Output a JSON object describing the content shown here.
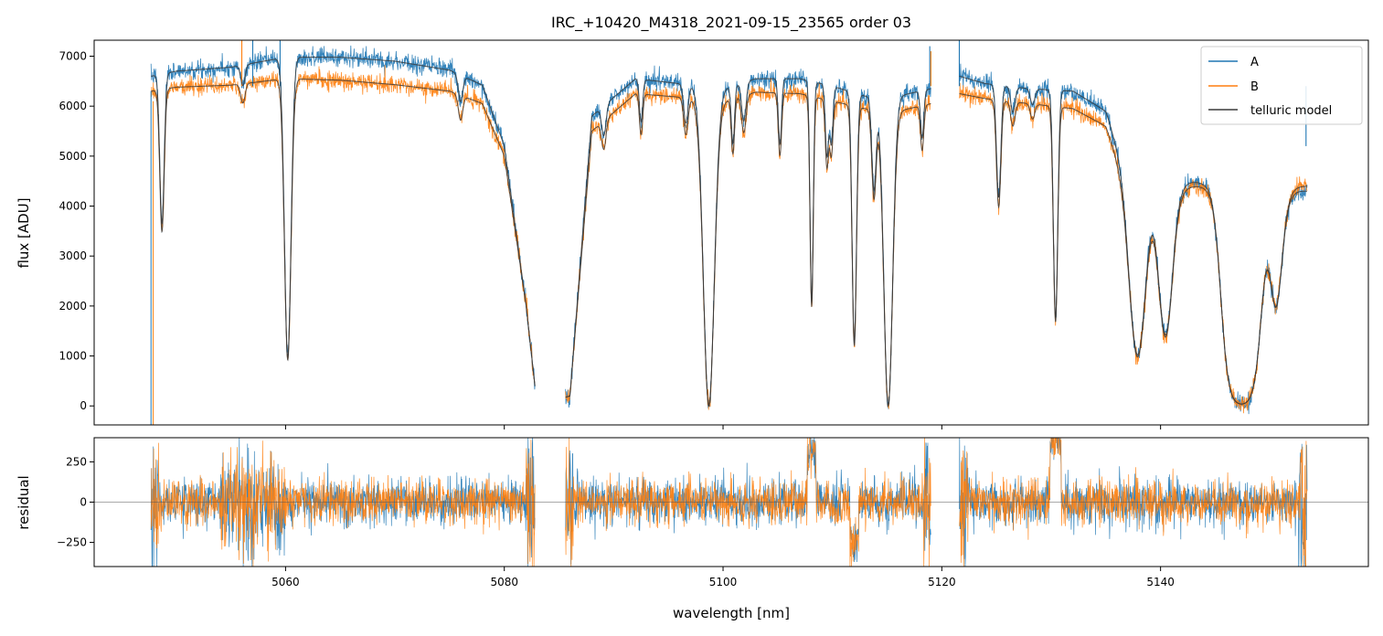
{
  "chart_data": [
    {
      "type": "line",
      "panel": "top",
      "title": "IRC_+10420_M4318_2021-09-15_23565  order 03",
      "xlabel": "",
      "ylabel": "flux [ADU]",
      "xlim": [
        5042.5,
        5159
      ],
      "ylim": [
        -380,
        7320
      ],
      "yticks": [
        0,
        1000,
        2000,
        3000,
        4000,
        5000,
        6000,
        7000
      ],
      "ytick_labels": [
        "0",
        "1000",
        "2000",
        "3000",
        "4000",
        "5000",
        "6000",
        "7000"
      ],
      "xticks": [
        5060,
        5080,
        5100,
        5120,
        5140
      ],
      "legend": {
        "position": "top-right",
        "entries": [
          "A",
          "B",
          "telluric model"
        ]
      },
      "colors": {
        "A": "#1f77b4",
        "B": "#ff7f0e",
        "model": "#3a3a3a"
      },
      "grid": false,
      "series": [
        {
          "name": "A",
          "segments": [
            [
              5047.7,
              5082.8
            ],
            [
              5085.6,
              5119.0
            ],
            [
              5121.6,
              5153.4
            ]
          ],
          "continuum": [
            [
              5047.7,
              6600
            ],
            [
              5050,
              6700
            ],
            [
              5055,
              6780
            ],
            [
              5060,
              6980
            ],
            [
              5065,
              6980
            ],
            [
              5070,
              6900
            ],
            [
              5075,
              6720
            ],
            [
              5078,
              6420
            ],
            [
              5080,
              5200
            ],
            [
              5082,
              2000
            ],
            [
              5083,
              0
            ],
            [
              5086,
              200
            ],
            [
              5088,
              5800
            ],
            [
              5092,
              6550
            ],
            [
              5096,
              6450
            ],
            [
              5100,
              6350
            ],
            [
              5103,
              6550
            ],
            [
              5107,
              6550
            ],
            [
              5110,
              6400
            ],
            [
              5113,
              6200
            ],
            [
              5116,
              6200
            ],
            [
              5119,
              6350
            ],
            [
              5121.6,
              6600
            ],
            [
              5124,
              6450
            ],
            [
              5128,
              6350
            ],
            [
              5132,
              6300
            ],
            [
              5135,
              5900
            ],
            [
              5137,
              4600
            ],
            [
              5153.4,
              4300
            ]
          ]
        },
        {
          "name": "B",
          "segments": [
            [
              5047.7,
              5082.8
            ],
            [
              5085.6,
              5119.0
            ],
            [
              5121.6,
              5153.4
            ]
          ],
          "continuum": [
            [
              5047.7,
              6300
            ],
            [
              5050,
              6380
            ],
            [
              5055,
              6420
            ],
            [
              5060,
              6550
            ],
            [
              5065,
              6520
            ],
            [
              5070,
              6430
            ],
            [
              5075,
              6300
            ],
            [
              5078,
              6050
            ],
            [
              5080,
              5000
            ],
            [
              5082,
              2000
            ],
            [
              5083,
              0
            ],
            [
              5086,
              200
            ],
            [
              5088,
              5500
            ],
            [
              5092,
              6250
            ],
            [
              5096,
              6180
            ],
            [
              5100,
              6100
            ],
            [
              5103,
              6280
            ],
            [
              5107,
              6250
            ],
            [
              5110,
              6100
            ],
            [
              5113,
              5950
            ],
            [
              5116,
              5900
            ],
            [
              5119,
              6050
            ],
            [
              5121.6,
              6250
            ],
            [
              5124,
              6150
            ],
            [
              5128,
              6050
            ],
            [
              5132,
              5950
            ],
            [
              5135,
              5600
            ],
            [
              5137,
              4400
            ],
            [
              5153.4,
              4400
            ]
          ]
        },
        {
          "name": "telluric model"
        }
      ],
      "absorption_lines": [
        {
          "center": 5048.7,
          "depth": 0.45,
          "width": 0.2
        },
        {
          "center": 5060.2,
          "depth": 0.86,
          "width": 0.3
        },
        {
          "center": 5056.1,
          "depth": 0.06,
          "width": 0.2
        },
        {
          "center": 5076.0,
          "depth": 0.08,
          "width": 0.2
        },
        {
          "center": 5089.1,
          "depth": 0.1,
          "width": 0.2
        },
        {
          "center": 5092.5,
          "depth": 0.13,
          "width": 0.15
        },
        {
          "center": 5096.6,
          "depth": 0.12,
          "width": 0.2
        },
        {
          "center": 5098.7,
          "depth": 1.0,
          "width": 0.5
        },
        {
          "center": 5100.9,
          "depth": 0.18,
          "width": 0.15
        },
        {
          "center": 5101.9,
          "depth": 0.12,
          "width": 0.2
        },
        {
          "center": 5105.2,
          "depth": 0.2,
          "width": 0.15
        },
        {
          "center": 5108.1,
          "depth": 0.68,
          "width": 0.15
        },
        {
          "center": 5109.5,
          "depth": 0.22,
          "width": 0.15
        },
        {
          "center": 5109.9,
          "depth": 0.18,
          "width": 0.15
        },
        {
          "center": 5112.0,
          "depth": 0.8,
          "width": 0.2
        },
        {
          "center": 5113.8,
          "depth": 0.3,
          "width": 0.2
        },
        {
          "center": 5115.1,
          "depth": 1.0,
          "width": 0.4
        },
        {
          "center": 5118.2,
          "depth": 0.15,
          "width": 0.15
        },
        {
          "center": 5125.2,
          "depth": 0.35,
          "width": 0.2
        },
        {
          "center": 5126.5,
          "depth": 0.08,
          "width": 0.2
        },
        {
          "center": 5128.3,
          "depth": 0.05,
          "width": 0.2
        },
        {
          "center": 5130.4,
          "depth": 0.72,
          "width": 0.2
        }
      ],
      "absorption_bands": [
        {
          "from": 5137.2,
          "to": 5138.6,
          "depth": 1.0
        },
        {
          "from": 5139.9,
          "to": 5141.0,
          "depth": 1.0
        },
        {
          "from": 5145.5,
          "to": 5149.3,
          "depth": 1.0
        },
        {
          "from": 5150.2,
          "to": 5150.9,
          "depth": 1.0
        }
      ],
      "spikes": [
        {
          "series": "B",
          "x": 5056.0,
          "y": 7320
        },
        {
          "series": "A",
          "x": 5057.0,
          "y": 7320
        },
        {
          "series": "A",
          "x": 5059.5,
          "y": 7320
        },
        {
          "series": "A",
          "x": 5118.9,
          "y": 7200
        },
        {
          "series": "B",
          "x": 5119.0,
          "y": 7100
        },
        {
          "series": "A",
          "x": 5121.6,
          "y": 7320
        },
        {
          "series": "A",
          "x": 5153.3,
          "y": 5200
        }
      ]
    },
    {
      "type": "line",
      "panel": "bottom",
      "title": "",
      "xlabel": "wavelength [nm]",
      "ylabel": "residual",
      "xlim": [
        5042.5,
        5159
      ],
      "ylim": [
        -400,
        400
      ],
      "yticks": [
        -250,
        0,
        250
      ],
      "ytick_labels": [
        "−250",
        "0",
        "250"
      ],
      "xticks": [
        5060,
        5080,
        5100,
        5120,
        5140
      ],
      "xtick_labels": [
        "5060",
        "5080",
        "5100",
        "5120",
        "5140"
      ],
      "zero_line": true,
      "series": [
        {
          "name": "A",
          "noise_amplitude": 70
        },
        {
          "name": "B",
          "noise_amplitude": 70
        }
      ]
    }
  ]
}
